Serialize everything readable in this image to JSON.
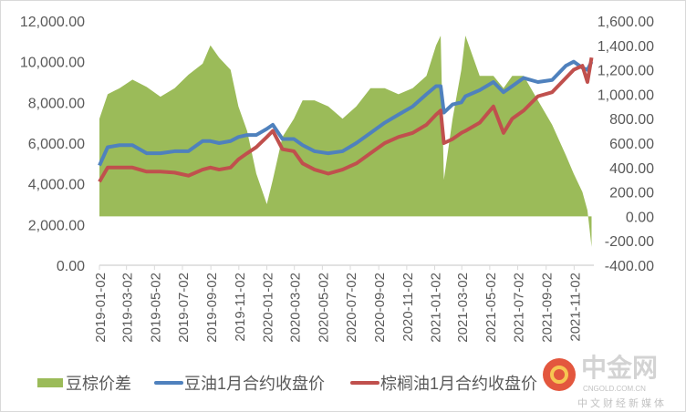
{
  "chart_data": {
    "type": "line",
    "title": "",
    "left_axis": {
      "ylim": [
        0,
        12000
      ],
      "ticks": [
        "0.00",
        "2,000.00",
        "4,000.00",
        "6,000.00",
        "8,000.00",
        "10,000.00",
        "12,000.00"
      ],
      "tick_values": [
        0,
        2000,
        4000,
        6000,
        8000,
        10000,
        12000
      ]
    },
    "right_axis": {
      "ylim": [
        -400,
        1600
      ],
      "ticks": [
        "-400.00",
        "-200.00",
        "0.00",
        "200.00",
        "400.00",
        "600.00",
        "800.00",
        "1,000.00",
        "1,200.00",
        "1,400.00",
        "1,600.00"
      ],
      "tick_values": [
        -400,
        -200,
        0,
        200,
        400,
        600,
        800,
        1000,
        1200,
        1400,
        1600
      ]
    },
    "x_ticks": [
      "2019-01-02",
      "2019-03-02",
      "2019-05-02",
      "2019-07-02",
      "2019-09-02",
      "2019-11-02",
      "2020-01-02",
      "2020-03-02",
      "2020-05-02",
      "2020-07-02",
      "2020-09-02",
      "2020-11-02",
      "2021-01-02",
      "2021-03-02",
      "2021-05-02",
      "2021-07-02",
      "2021-09-02",
      "2021-11-02"
    ],
    "x": [
      "2019-01-02",
      "2019-01-20",
      "2019-02-15",
      "2019-03-15",
      "2019-04-15",
      "2019-05-15",
      "2019-06-15",
      "2019-07-15",
      "2019-08-15",
      "2019-09-01",
      "2019-09-20",
      "2019-10-15",
      "2019-11-01",
      "2019-11-20",
      "2019-12-10",
      "2020-01-02",
      "2020-01-15",
      "2020-02-05",
      "2020-03-01",
      "2020-03-20",
      "2020-04-15",
      "2020-05-15",
      "2020-06-15",
      "2020-07-15",
      "2020-08-15",
      "2020-09-15",
      "2020-10-15",
      "2020-11-15",
      "2020-12-15",
      "2021-01-05",
      "2021-01-15",
      "2021-01-22",
      "2021-02-10",
      "2021-03-01",
      "2021-03-10",
      "2021-04-10",
      "2021-05-10",
      "2021-06-01",
      "2021-06-20",
      "2021-07-15",
      "2021-08-15",
      "2021-09-15",
      "2021-10-15",
      "2021-11-01",
      "2021-11-20",
      "2021-12-01",
      "2021-12-10"
    ],
    "series": [
      {
        "name": "豆棕价差",
        "type": "area",
        "axis": "right",
        "color": "#9bbb59",
        "values": [
          800,
          1000,
          1050,
          1120,
          1060,
          980,
          1050,
          1160,
          1250,
          1400,
          1300,
          1200,
          900,
          700,
          350,
          100,
          300,
          650,
          800,
          950,
          950,
          900,
          800,
          900,
          1050,
          1050,
          1000,
          1050,
          1150,
          1400,
          1480,
          300,
          800,
          1200,
          1480,
          1150,
          1150,
          1050,
          1150,
          1150,
          950,
          750,
          500,
          350,
          200,
          50,
          -250
        ]
      },
      {
        "name": "豆油1月合约收盘价",
        "type": "line",
        "axis": "left",
        "color": "#4f81bd",
        "values": [
          4900,
          5800,
          5900,
          5900,
          5500,
          5500,
          5600,
          5600,
          6100,
          6100,
          6000,
          6100,
          6300,
          6400,
          6400,
          6700,
          6900,
          6200,
          6200,
          5900,
          5600,
          5500,
          5600,
          6000,
          6500,
          7000,
          7400,
          7800,
          8400,
          8800,
          8800,
          7500,
          7900,
          8000,
          8300,
          8600,
          9000,
          8500,
          8800,
          9200,
          9000,
          9100,
          9800,
          10000,
          9700,
          9600,
          10000
        ]
      },
      {
        "name": "棕榈油1月合约收盘价",
        "type": "line",
        "axis": "left",
        "color": "#c0504d",
        "values": [
          4100,
          4800,
          4800,
          4800,
          4600,
          4600,
          4550,
          4400,
          4700,
          4800,
          4700,
          4800,
          5200,
          5500,
          5800,
          6300,
          6600,
          5700,
          5600,
          5000,
          4700,
          4500,
          4700,
          5000,
          5500,
          6000,
          6300,
          6500,
          6900,
          7400,
          7600,
          6000,
          6200,
          6500,
          6600,
          7000,
          7800,
          6500,
          7200,
          7600,
          8300,
          8500,
          9200,
          9600,
          9800,
          9000,
          10200
        ]
      }
    ],
    "legend_position": "bottom",
    "x_end": "2021-12-15"
  },
  "watermark": {
    "name": "中金网",
    "url": "CNGOLD.COM.CN",
    "slogan": "中文财经新媒体"
  }
}
